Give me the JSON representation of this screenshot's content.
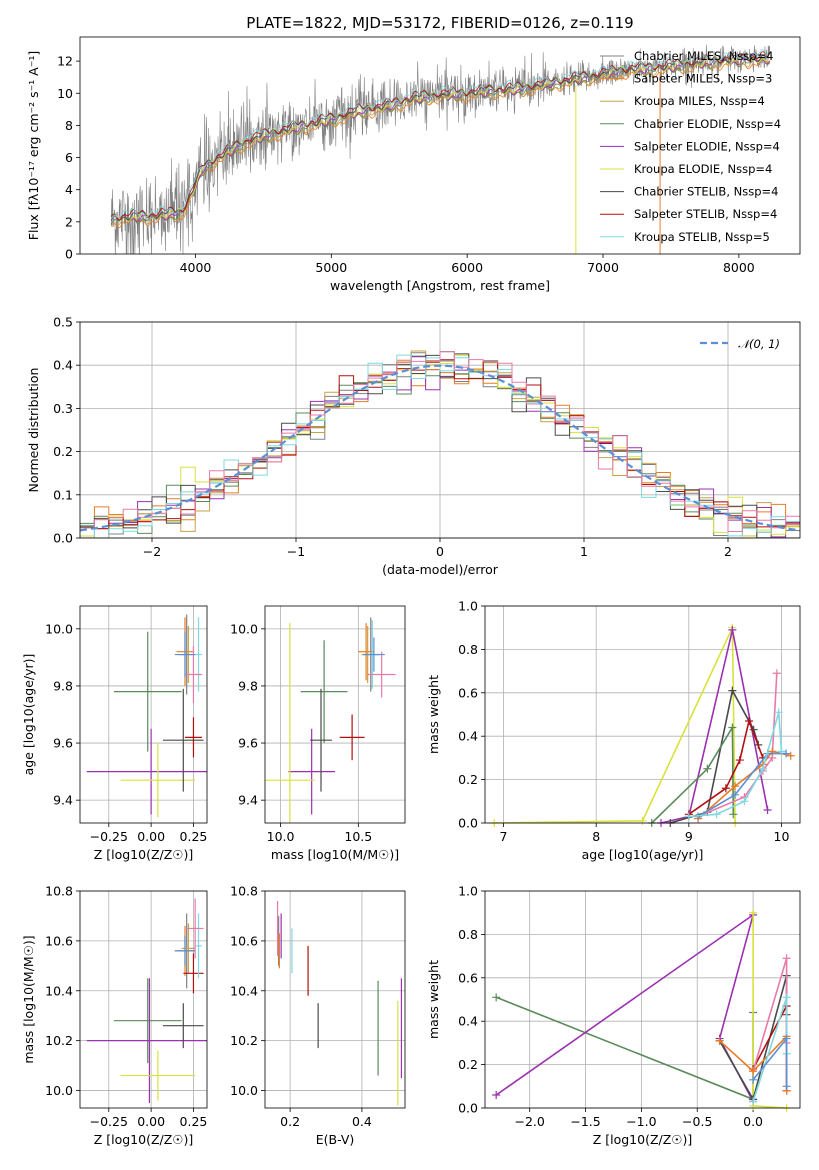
{
  "figure": {
    "title": "PLATE=1822, MJD=53172, FIBERID=0126, z=0.119",
    "colors": {
      "grey": "#808080",
      "orange": "#e87c26",
      "gold": "#c8a24a",
      "green": "#5a8a5a",
      "purple": "#9b30b0",
      "lime": "#d8e23a",
      "dark": "#4a4a4a",
      "red": "#b01010",
      "cyan": "#7fd8e0",
      "pink": "#e87aa8",
      "blue": "#5b8fd6"
    }
  },
  "chart_data": [
    {
      "id": "spectrum",
      "type": "line",
      "title": "PLATE=1822, MJD=53172, FIBERID=0126, z=0.119",
      "xlabel": "wavelength [Angstrom, rest frame]",
      "ylabel": "Flux [fλ10⁻¹⁷ erg cm⁻² s⁻¹ A⁻¹]",
      "xlim": [
        3150,
        8450
      ],
      "ylim": [
        0,
        13.5
      ],
      "xticks": [
        "4000",
        "5000",
        "6000",
        "7000",
        "8000"
      ],
      "yticks": [
        "0",
        "2",
        "4",
        "6",
        "8",
        "10",
        "12"
      ],
      "grid": false,
      "legend_position": "top-right",
      "continuum": {
        "x": [
          3380,
          3500,
          3700,
          3900,
          3950,
          4050,
          4200,
          4400,
          4600,
          4800,
          5000,
          5200,
          5400,
          5600,
          5800,
          6000,
          6200,
          6400,
          6600,
          6800,
          7000,
          7200,
          7400,
          7600,
          7800,
          8000,
          8200
        ],
        "y": [
          2.2,
          2.3,
          2.4,
          2.6,
          3.4,
          5.3,
          6.2,
          7.1,
          7.6,
          8.0,
          8.4,
          8.9,
          9.2,
          9.7,
          9.9,
          10.0,
          10.2,
          10.3,
          10.6,
          10.9,
          11.2,
          11.5,
          11.6,
          11.8,
          12.0,
          12.1,
          12.2
        ]
      },
      "series": [
        {
          "name": "Chabrier MILES, N_SSP=4",
          "color": "#808080"
        },
        {
          "name": "Salpeter MILES, N_SSP=3",
          "color": "#e87c26"
        },
        {
          "name": "Kroupa MILES, N_SSP=4",
          "color": "#c8a24a"
        },
        {
          "name": "Chabrier ELODIE, N_SSP=4",
          "color": "#5a8a5a"
        },
        {
          "name": "Salpeter ELODIE, N_SSP=4",
          "color": "#9b30b0"
        },
        {
          "name": "Kroupa ELODIE, N_SSP=4",
          "color": "#d8e23a"
        },
        {
          "name": "Chabrier STELIB, N_SSP=4",
          "color": "#4a4a4a"
        },
        {
          "name": "Salpeter STELIB, N_SSP=4",
          "color": "#b01010"
        },
        {
          "name": "Kroupa STELIB, N_SSP=5",
          "color": "#7fd8e0"
        }
      ]
    },
    {
      "id": "residuals",
      "type": "bar",
      "xlabel": "(data-model)/error",
      "ylabel": "Normed distribution",
      "xlim": [
        -2.5,
        2.5
      ],
      "ylim": [
        0,
        0.5
      ],
      "xticks": [
        "−2",
        "−1",
        "0",
        "1",
        "2"
      ],
      "yticks": [
        "0.0",
        "0.1",
        "0.2",
        "0.3",
        "0.4",
        "0.5"
      ],
      "grid": true,
      "legend_position": "top-right",
      "legend": "𝒩(0, 1)",
      "bin_width": 0.1,
      "reference_curve": "normal(0,1)"
    },
    {
      "id": "age-vs-Z",
      "type": "scatter",
      "xlabel": "Z [log10(Z/Z☉)]",
      "ylabel": "age  [log10(age/yr)]",
      "xlim": [
        -0.42,
        0.33
      ],
      "ylim": [
        9.32,
        10.08
      ],
      "xticks": [
        "−0.25",
        "0.00",
        "0.25"
      ],
      "yticks": [
        "9.4",
        "9.6",
        "9.8",
        "10.0"
      ],
      "grid": true,
      "points": [
        {
          "color": "#808080",
          "x": 0.21,
          "y": 9.91,
          "xerr": 0.05,
          "yerr": 0.14
        },
        {
          "color": "#e87c26",
          "x": 0.2,
          "y": 9.92,
          "xerr": 0.05,
          "yerr": 0.12
        },
        {
          "color": "#c8a24a",
          "x": 0.22,
          "y": 9.91,
          "xerr": 0.04,
          "yerr": 0.1
        },
        {
          "color": "#5a8a5a",
          "x": -0.02,
          "y": 9.78,
          "xerr": 0.2,
          "yerr": 0.21
        },
        {
          "color": "#9b30b0",
          "x": 0.0,
          "y": 9.5,
          "xerr": 0.38,
          "yerr": 0.15
        },
        {
          "color": "#d8e23a",
          "x": 0.04,
          "y": 9.47,
          "xerr": 0.22,
          "yerr": 0.13
        },
        {
          "color": "#4a4a4a",
          "x": 0.19,
          "y": 9.61,
          "xerr": 0.12,
          "yerr": 0.18
        },
        {
          "color": "#b01010",
          "x": 0.25,
          "y": 9.62,
          "xerr": 0.05,
          "yerr": 0.07
        },
        {
          "color": "#7fd8e0",
          "x": 0.28,
          "y": 9.91,
          "xerr": 0.02,
          "yerr": 0.13
        },
        {
          "color": "#e87aa8",
          "x": 0.25,
          "y": 9.84,
          "xerr": 0.05,
          "yerr": 0.1
        },
        {
          "color": "#5b8fd6",
          "x": 0.2,
          "y": 9.91,
          "xerr": 0.06,
          "yerr": 0.08
        }
      ]
    },
    {
      "id": "age-vs-mass",
      "type": "scatter",
      "xlabel": "mass [log10(M/M☉)]",
      "ylabel": "",
      "xlim": [
        9.9,
        10.8
      ],
      "ylim": [
        9.32,
        10.08
      ],
      "xticks": [
        "10.0",
        "10.5"
      ],
      "yticks": [
        "9.4",
        "9.6",
        "9.8",
        "10.0"
      ],
      "grid": true,
      "points": [
        {
          "color": "#808080",
          "x": 10.58,
          "y": 9.91,
          "xerr": 0.05,
          "yerr": 0.13
        },
        {
          "color": "#e87c26",
          "x": 10.55,
          "y": 9.92,
          "xerr": 0.05,
          "yerr": 0.1
        },
        {
          "color": "#c8a24a",
          "x": 10.56,
          "y": 9.91,
          "xerr": 0.04,
          "yerr": 0.1
        },
        {
          "color": "#5a8a5a",
          "x": 10.28,
          "y": 9.78,
          "xerr": 0.15,
          "yerr": 0.18
        },
        {
          "color": "#9b30b0",
          "x": 10.2,
          "y": 9.5,
          "xerr": 0.15,
          "yerr": 0.15
        },
        {
          "color": "#d8e23a",
          "x": 10.06,
          "y": 9.47,
          "xerr": 0.16,
          "yerr": 0.55
        },
        {
          "color": "#4a4a4a",
          "x": 10.26,
          "y": 9.61,
          "xerr": 0.07,
          "yerr": 0.18
        },
        {
          "color": "#b01010",
          "x": 10.46,
          "y": 9.62,
          "xerr": 0.08,
          "yerr": 0.08
        },
        {
          "color": "#7fd8e0",
          "x": 10.59,
          "y": 9.91,
          "xerr": 0.05,
          "yerr": 0.12
        },
        {
          "color": "#e87aa8",
          "x": 10.65,
          "y": 9.84,
          "xerr": 0.09,
          "yerr": 0.08
        },
        {
          "color": "#5b8fd6",
          "x": 10.6,
          "y": 9.91,
          "xerr": 0.07,
          "yerr": 0.06
        }
      ]
    },
    {
      "id": "mass-weight-vs-age",
      "type": "line",
      "xlabel": "age  [log10(age/yr)]",
      "ylabel": "mass weight",
      "xlim": [
        6.8,
        10.2
      ],
      "ylim": [
        0,
        1.0
      ],
      "xticks": [
        "7",
        "8",
        "9",
        "10"
      ],
      "yticks": [
        "0.0",
        "0.2",
        "0.4",
        "0.6",
        "0.8",
        "1.0"
      ],
      "grid": true,
      "series": [
        {
          "color": "#d8e23a",
          "x": [
            6.9,
            8.5,
            9.47,
            9.5
          ],
          "y": [
            0.0,
            0.01,
            0.9,
            0.0
          ]
        },
        {
          "color": "#9b30b0",
          "x": [
            8.7,
            9.0,
            9.47,
            9.85
          ],
          "y": [
            0.0,
            0.03,
            0.89,
            0.06
          ]
        },
        {
          "color": "#4a4a4a",
          "x": [
            8.8,
            9.2,
            9.47,
            9.7,
            9.75
          ],
          "y": [
            0.0,
            0.05,
            0.61,
            0.43,
            0.36
          ]
        },
        {
          "color": "#5a8a5a",
          "x": [
            8.6,
            9.2,
            9.47,
            9.48
          ],
          "y": [
            0.0,
            0.25,
            0.44,
            0.04
          ]
        },
        {
          "color": "#b01010",
          "x": [
            9.0,
            9.4,
            9.55,
            9.65,
            9.8
          ],
          "y": [
            0.04,
            0.16,
            0.29,
            0.47,
            0.3
          ]
        },
        {
          "color": "#e87aa8",
          "x": [
            9.1,
            9.6,
            9.8,
            9.9,
            9.95
          ],
          "y": [
            0.03,
            0.12,
            0.24,
            0.3,
            0.69
          ]
        },
        {
          "color": "#e87c26",
          "x": [
            9.1,
            9.5,
            9.8,
            9.9,
            10.1
          ],
          "y": [
            0.02,
            0.17,
            0.27,
            0.33,
            0.31
          ]
        },
        {
          "color": "#5b8fd6",
          "x": [
            9.1,
            9.5,
            9.85,
            10.05
          ],
          "y": [
            0.03,
            0.13,
            0.32,
            0.32
          ]
        },
        {
          "color": "#7fd8e0",
          "x": [
            9.0,
            9.3,
            9.6,
            9.8,
            9.97,
            10.0
          ],
          "y": [
            0.03,
            0.04,
            0.1,
            0.25,
            0.51,
            0.33
          ]
        }
      ]
    },
    {
      "id": "mass-vs-Z",
      "type": "scatter",
      "xlabel": "Z [log10(Z/Z☉)]",
      "ylabel": "mass [log10(M/M☉)]",
      "xlim": [
        -0.42,
        0.33
      ],
      "ylim": [
        9.93,
        10.8
      ],
      "xticks": [
        "−0.25",
        "0.00",
        "0.25"
      ],
      "yticks": [
        "10.0",
        "10.2",
        "10.4",
        "10.6",
        "10.8"
      ],
      "grid": true,
      "points": [
        {
          "color": "#808080",
          "x": 0.21,
          "y": 10.56,
          "xerr": 0.05,
          "yerr": 0.15
        },
        {
          "color": "#e87c26",
          "x": 0.2,
          "y": 10.56,
          "xerr": 0.06,
          "yerr": 0.1
        },
        {
          "color": "#c8a24a",
          "x": 0.22,
          "y": 10.57,
          "xerr": 0.04,
          "yerr": 0.1
        },
        {
          "color": "#5a8a5a",
          "x": -0.02,
          "y": 10.28,
          "xerr": 0.2,
          "yerr": 0.17
        },
        {
          "color": "#9b30b0",
          "x": -0.01,
          "y": 10.2,
          "xerr": 0.37,
          "yerr": 0.25
        },
        {
          "color": "#d8e23a",
          "x": 0.04,
          "y": 10.06,
          "xerr": 0.22,
          "yerr": 0.1
        },
        {
          "color": "#4a4a4a",
          "x": 0.19,
          "y": 10.26,
          "xerr": 0.12,
          "yerr": 0.09
        },
        {
          "color": "#b01010",
          "x": 0.25,
          "y": 10.47,
          "xerr": 0.06,
          "yerr": 0.08
        },
        {
          "color": "#7fd8e0",
          "x": 0.28,
          "y": 10.58,
          "xerr": 0.02,
          "yerr": 0.13
        },
        {
          "color": "#e87aa8",
          "x": 0.26,
          "y": 10.65,
          "xerr": 0.05,
          "yerr": 0.12
        },
        {
          "color": "#5b8fd6",
          "x": 0.2,
          "y": 10.56,
          "xerr": 0.06,
          "yerr": 0.06
        }
      ]
    },
    {
      "id": "mass-vs-EBV",
      "type": "scatter",
      "xlabel": "E(B-V)",
      "ylabel": "",
      "xlim": [
        0.13,
        0.52
      ],
      "ylim": [
        9.93,
        10.8
      ],
      "xticks": [
        "0.2",
        "0.4"
      ],
      "yticks": [
        "10.0",
        "10.2",
        "10.4",
        "10.6",
        "10.8"
      ],
      "grid": true,
      "points": [
        {
          "color": "#808080",
          "x": 0.168,
          "y": 10.6,
          "xerr": 0.0,
          "yerr": 0.1
        },
        {
          "color": "#e87c26",
          "x": 0.17,
          "y": 10.56,
          "xerr": 0.0,
          "yerr": 0.07
        },
        {
          "color": "#e87aa8",
          "x": 0.165,
          "y": 10.65,
          "xerr": 0.0,
          "yerr": 0.11
        },
        {
          "color": "#9b30b0",
          "x": 0.175,
          "y": 10.62,
          "xerr": 0.0,
          "yerr": 0.09
        },
        {
          "color": "#7fd8e0",
          "x": 0.205,
          "y": 10.56,
          "xerr": 0.0,
          "yerr": 0.09
        },
        {
          "color": "#b01010",
          "x": 0.25,
          "y": 10.48,
          "xerr": 0.0,
          "yerr": 0.1
        },
        {
          "color": "#4a4a4a",
          "x": 0.278,
          "y": 10.26,
          "xerr": 0.0,
          "yerr": 0.09
        },
        {
          "color": "#5a8a5a",
          "x": 0.445,
          "y": 10.25,
          "xerr": 0.0,
          "yerr": 0.19
        },
        {
          "color": "#d8e23a",
          "x": 0.5,
          "y": 10.15,
          "xerr": 0.0,
          "yerr": 0.21
        },
        {
          "color": "#9b30b0",
          "x": 0.51,
          "y": 10.25,
          "xerr": 0.0,
          "yerr": 0.2
        }
      ]
    },
    {
      "id": "mass-weight-vs-Z",
      "type": "line",
      "xlabel": "Z [log10(Z/Z☉)]",
      "ylabel": "mass weight",
      "xlim": [
        -2.4,
        0.42
      ],
      "ylim": [
        0,
        1.0
      ],
      "xticks": [
        "−2.0",
        "−1.5",
        "−1.0",
        "−0.5",
        "0.0"
      ],
      "yticks": [
        "0.0",
        "0.2",
        "0.4",
        "0.6",
        "0.8",
        "1.0"
      ],
      "grid": true,
      "series": [
        {
          "color": "#5a8a5a",
          "x": [
            -2.3,
            0.0,
            0.0
          ],
          "y": [
            0.51,
            0.04,
            0.44
          ]
        },
        {
          "color": "#9b30b0",
          "x": [
            -2.3,
            0.0,
            -0.3,
            0.0
          ],
          "y": [
            0.06,
            0.89,
            0.32,
            0.03
          ]
        },
        {
          "color": "#d8e23a",
          "x": [
            0.0,
            0.0,
            0.3
          ],
          "y": [
            0.9,
            0.01,
            0.0
          ]
        },
        {
          "color": "#4a4a4a",
          "x": [
            -0.3,
            0.0,
            0.3,
            0.3
          ],
          "y": [
            0.31,
            0.04,
            0.61,
            0.43
          ]
        },
        {
          "color": "#b01010",
          "x": [
            0.0,
            0.3,
            0.3
          ],
          "y": [
            0.18,
            0.47,
            0.08
          ]
        },
        {
          "color": "#e87aa8",
          "x": [
            0.0,
            0.3,
            0.3
          ],
          "y": [
            0.17,
            0.69,
            0.3
          ]
        },
        {
          "color": "#e87c26",
          "x": [
            -0.3,
            0.0,
            0.3,
            0.3
          ],
          "y": [
            0.31,
            0.17,
            0.33,
            0.08
          ]
        },
        {
          "color": "#7fd8e0",
          "x": [
            0.0,
            0.3,
            0.3
          ],
          "y": [
            0.03,
            0.51,
            0.25
          ]
        },
        {
          "color": "#5b8fd6",
          "x": [
            0.0,
            0.3,
            0.3
          ],
          "y": [
            0.13,
            0.32,
            0.1
          ]
        }
      ]
    }
  ]
}
